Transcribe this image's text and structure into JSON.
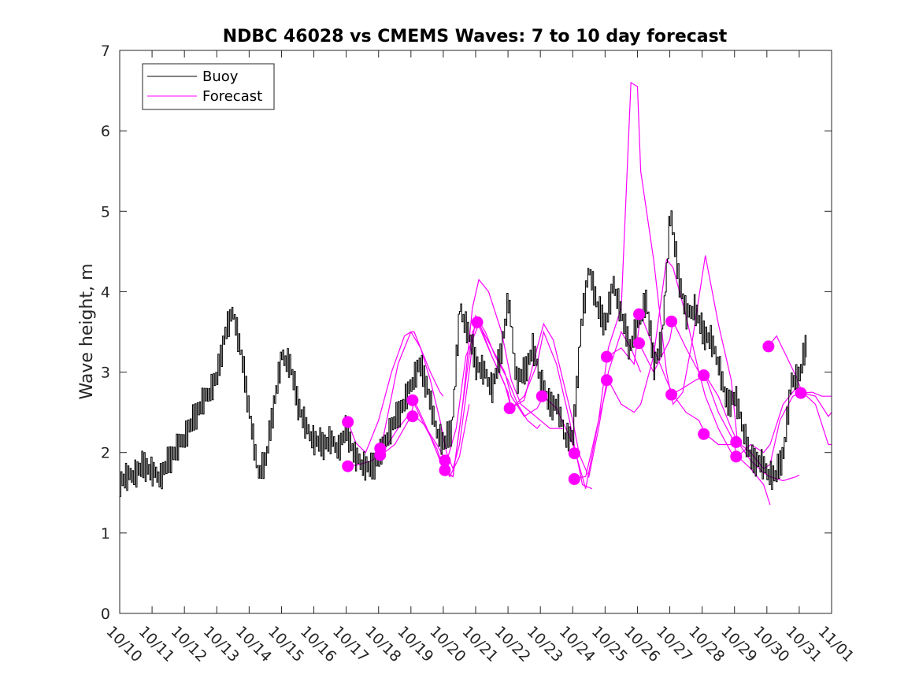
{
  "chart_data": {
    "type": "line",
    "title": "NDBC 46028 vs CMEMS Waves: 7 to 10 day forecast",
    "xlabel": "",
    "ylabel": "Wave height, m",
    "xlim": [
      0,
      22
    ],
    "ylim": [
      0,
      7
    ],
    "x_unit": "days since 10/10",
    "x_ticks": [
      0,
      1,
      2,
      3,
      4,
      5,
      6,
      7,
      8,
      9,
      10,
      11,
      12,
      13,
      14,
      15,
      16,
      17,
      18,
      19,
      20,
      21,
      22
    ],
    "x_tick_labels": [
      "10/10",
      "10/11",
      "10/12",
      "10/13",
      "10/14",
      "10/15",
      "10/16",
      "10/17",
      "10/18",
      "10/19",
      "10/20",
      "10/21",
      "10/22",
      "10/23",
      "10/24",
      "10/25",
      "10/26",
      "10/27",
      "10/28",
      "10/29",
      "10/30",
      "10/31",
      "11/01"
    ],
    "y_ticks": [
      0,
      1,
      2,
      3,
      4,
      5,
      6,
      7
    ],
    "y_tick_labels": [
      "0",
      "1",
      "2",
      "3",
      "4",
      "5",
      "6",
      "7"
    ],
    "legend": {
      "placement": "top-left",
      "entries": [
        {
          "label": "Buoy",
          "color": "#000000"
        },
        {
          "label": "Forecast",
          "color": "#ff00ff"
        }
      ]
    },
    "series": [
      {
        "name": "Buoy",
        "color": "#000000",
        "x": [
          0,
          0.25,
          0.5,
          0.75,
          1,
          1.25,
          1.5,
          1.75,
          2,
          2.25,
          2.5,
          2.75,
          3,
          3.25,
          3.5,
          3.75,
          4,
          4.25,
          4.5,
          4.75,
          5,
          5.25,
          5.5,
          5.75,
          6,
          6.25,
          6.5,
          6.75,
          7,
          7.25,
          7.5,
          7.75,
          8,
          8.25,
          8.5,
          8.75,
          9,
          9.25,
          9.5,
          9.75,
          10,
          10.25,
          10.5,
          10.75,
          11,
          11.25,
          11.5,
          11.75,
          12,
          12.25,
          12.5,
          12.75,
          13,
          13.25,
          13.5,
          13.75,
          14,
          14.25,
          14.5,
          14.75,
          15,
          15.25,
          15.5,
          15.75,
          16,
          16.25,
          16.5,
          16.75,
          17,
          17.25,
          17.5,
          17.75,
          18,
          18.25,
          18.5,
          18.75,
          19,
          19.25,
          19.5,
          19.75,
          20,
          20.25,
          20.5,
          20.75,
          21,
          21.25
        ],
        "values": [
          1.65,
          1.7,
          1.75,
          1.85,
          1.75,
          1.7,
          1.9,
          2.05,
          2.2,
          2.4,
          2.6,
          2.75,
          2.95,
          3.5,
          3.75,
          3.2,
          2.5,
          1.75,
          1.9,
          2.6,
          3.2,
          3.1,
          2.6,
          2.3,
          2.15,
          2.1,
          2.15,
          2.05,
          2.3,
          1.95,
          1.85,
          1.8,
          1.95,
          2.2,
          2.4,
          2.6,
          2.85,
          3.1,
          2.8,
          2.3,
          2.1,
          2.3,
          3.8,
          3.5,
          3.1,
          3.0,
          2.8,
          3.2,
          3.9,
          2.9,
          3.0,
          3.3,
          2.9,
          2.6,
          2.6,
          2.2,
          2.2,
          3.6,
          4.3,
          3.8,
          3.6,
          4.1,
          3.7,
          3.3,
          3.6,
          3.9,
          3.1,
          3.4,
          5.0,
          4.2,
          3.7,
          3.8,
          3.5,
          3.4,
          3.1,
          2.6,
          2.7,
          2.3,
          1.9,
          1.9,
          1.75,
          1.7,
          2.0,
          2.9,
          2.95,
          3.45
        ]
      }
    ],
    "forecast_lines": [
      {
        "x": [
          7.05,
          7.3,
          7.6,
          8.0,
          8.4,
          8.8,
          9.0,
          9.3,
          9.6,
          9.9,
          10.0
        ],
        "values": [
          2.38,
          2.12,
          2.0,
          2.4,
          3.0,
          3.45,
          3.5,
          3.3,
          3.0,
          2.75,
          2.7
        ]
      },
      {
        "x": [
          8.05,
          8.3,
          8.6,
          9.0,
          9.1,
          9.3,
          9.6,
          9.9,
          10.1,
          10.3,
          10.5,
          10.8,
          11.0,
          11.3,
          11.6,
          12.0,
          12.3,
          12.6,
          12.9,
          13.0
        ],
        "values": [
          2.0,
          2.5,
          3.1,
          3.5,
          3.5,
          3.3,
          2.9,
          2.4,
          2.0,
          1.8,
          2.1,
          3.0,
          3.7,
          3.5,
          3.2,
          2.9,
          2.6,
          2.4,
          2.3,
          2.35
        ]
      },
      {
        "x": [
          7.05,
          7.4,
          7.8,
          8.2,
          8.6,
          9.0,
          9.4,
          9.8,
          10.05,
          10.3,
          10.6,
          10.9,
          11.1,
          11.4,
          11.8,
          12.1,
          12.4,
          12.7,
          13.0,
          13.3,
          13.7
        ],
        "values": [
          1.83,
          1.85,
          1.9,
          2.05,
          2.3,
          2.5,
          2.35,
          2.05,
          1.75,
          1.7,
          2.6,
          3.8,
          4.15,
          4.0,
          3.5,
          2.9,
          2.6,
          2.5,
          2.4,
          2.3,
          2.3
        ]
      },
      {
        "x": [
          8.05,
          8.5,
          9.0,
          9.1,
          9.5,
          9.9,
          10.2,
          10.5,
          10.8
        ],
        "values": [
          1.96,
          2.1,
          2.45,
          2.65,
          2.3,
          1.9,
          1.7,
          1.95,
          2.6
        ]
      },
      {
        "x": [
          9.05,
          9.4,
          9.8,
          10.1,
          10.4,
          10.7,
          11.1,
          11.5,
          11.9,
          12.1,
          12.5,
          12.9,
          13.1,
          13.5,
          13.9,
          14.1,
          14.3,
          14.6
        ],
        "values": [
          2.65,
          2.35,
          2.1,
          1.88,
          2.3,
          3.2,
          3.6,
          3.3,
          3.0,
          2.7,
          2.45,
          2.55,
          2.7,
          2.55,
          2.2,
          2.0,
          1.6,
          1.55
        ]
      },
      {
        "x": [
          10.05,
          10.3,
          10.6,
          10.9,
          11.1,
          11.5,
          11.9,
          12.1,
          12.5,
          12.9,
          13.1,
          13.4,
          13.7,
          14.0,
          14.2,
          14.5,
          14.8,
          15.1,
          15.5,
          15.8,
          16.1
        ],
        "values": [
          1.78,
          1.7,
          2.6,
          3.5,
          3.62,
          3.2,
          2.85,
          2.55,
          2.65,
          3.3,
          3.6,
          3.4,
          2.9,
          2.4,
          1.98,
          1.7,
          2.3,
          3.0,
          3.5,
          3.3,
          3.0
        ]
      },
      {
        "x": [
          11.05,
          11.5,
          12.0,
          12.1,
          12.5,
          12.9,
          13.1,
          13.5,
          13.9,
          14.1,
          14.4,
          14.8,
          15.1,
          15.5,
          15.8,
          16.0,
          16.1,
          16.5,
          16.9,
          17.1,
          17.4,
          17.7,
          18.1,
          18.5,
          18.9,
          19.1
        ],
        "values": [
          3.62,
          3.2,
          2.75,
          2.55,
          2.7,
          3.1,
          3.5,
          3.1,
          2.4,
          1.98,
          1.55,
          2.4,
          3.3,
          3.8,
          6.6,
          6.55,
          5.5,
          4.4,
          3.0,
          2.6,
          2.75,
          3.4,
          4.45,
          3.6,
          2.9,
          2.1
        ]
      },
      {
        "x": [
          14.05,
          14.4,
          14.8,
          15.1,
          15.5,
          15.9,
          16.1,
          16.5,
          16.9,
          17.1,
          17.5,
          17.9,
          18.1,
          18.5,
          18.9,
          19.1,
          19.5,
          19.9,
          20.1
        ],
        "values": [
          1.68,
          1.7,
          2.4,
          2.9,
          2.6,
          2.5,
          2.6,
          3.2,
          4.4,
          4.3,
          3.7,
          3.0,
          2.7,
          2.3,
          2.0,
          1.95,
          1.8,
          1.6,
          1.35
        ]
      },
      {
        "x": [
          15.05,
          15.5,
          15.9,
          16.1,
          16.5,
          16.9,
          17.1,
          17.5,
          17.9,
          18.1,
          18.5,
          18.9,
          19.1,
          19.5,
          19.9,
          20.1,
          20.5,
          20.9,
          21.0
        ],
        "values": [
          3.19,
          3.3,
          3.1,
          3.72,
          3.3,
          2.9,
          2.72,
          2.5,
          2.4,
          2.23,
          2.1,
          2.1,
          2.13,
          1.9,
          1.75,
          1.7,
          1.65,
          1.7,
          1.72
        ]
      },
      {
        "x": [
          16.05,
          16.5,
          17.0,
          17.1,
          17.5,
          17.9,
          18.1,
          18.5,
          18.9,
          19.1,
          19.5,
          19.9,
          20.1,
          20.5,
          20.9,
          21.1,
          21.5,
          21.9,
          22.0
        ],
        "values": [
          3.36,
          3.0,
          3.4,
          3.63,
          3.3,
          3.0,
          2.95,
          2.5,
          2.2,
          1.95,
          2.1,
          2.0,
          2.1,
          2.6,
          2.8,
          2.74,
          2.7,
          2.45,
          2.5
        ]
      },
      {
        "x": [
          17.05,
          17.4,
          17.8,
          18.1,
          18.5,
          18.9,
          19.1,
          19.5,
          19.9,
          20.1,
          20.4,
          20.8,
          21.1,
          21.5,
          21.9,
          22.0
        ],
        "values": [
          2.72,
          2.8,
          2.9,
          2.96,
          2.7,
          2.3,
          2.13,
          2.0,
          1.8,
          1.85,
          2.4,
          2.7,
          2.75,
          2.6,
          2.1,
          2.1
        ]
      },
      {
        "x": [
          20.05,
          20.3,
          20.6,
          20.9,
          21.1,
          21.4,
          21.7,
          22.0
        ],
        "values": [
          3.32,
          3.45,
          3.2,
          2.95,
          2.74,
          2.75,
          2.7,
          2.7
        ]
      }
    ],
    "forecast_markers": {
      "x": [
        7.05,
        7.05,
        8.05,
        8.05,
        9.05,
        9.05,
        10.05,
        10.05,
        11.05,
        12.05,
        13.05,
        14.05,
        14.05,
        15.05,
        15.05,
        16.05,
        16.05,
        17.05,
        17.05,
        18.05,
        18.05,
        19.05,
        19.05,
        20.05,
        21.05
      ],
      "values": [
        2.38,
        1.83,
        2.05,
        1.97,
        2.65,
        2.45,
        1.9,
        1.78,
        3.62,
        2.55,
        2.7,
        1.99,
        1.67,
        3.19,
        2.9,
        3.72,
        3.36,
        3.63,
        2.72,
        2.96,
        2.23,
        2.13,
        1.95,
        3.32,
        2.74
      ]
    }
  }
}
